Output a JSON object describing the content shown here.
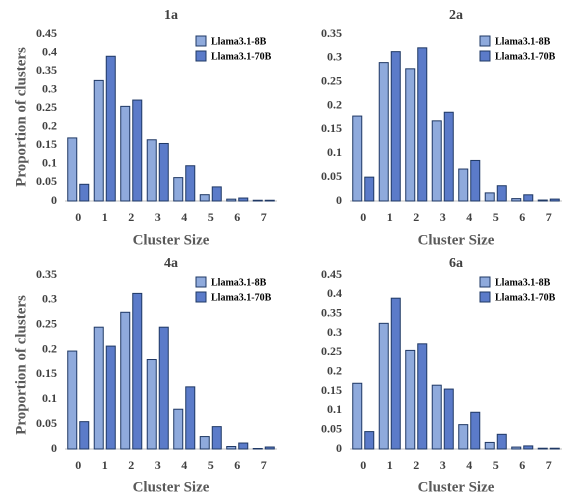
{
  "colors": {
    "s1": "#8faadc",
    "s2": "#5b7bc9",
    "stroke": "#1f3864"
  },
  "chart_data": [
    {
      "type": "bar",
      "title": "1a",
      "xlabel": "Cluster Size",
      "ylabel": "Proportion of clusters",
      "categories": [
        "0",
        "1",
        "2",
        "3",
        "4",
        "5",
        "6",
        "7"
      ],
      "ylim": [
        0,
        0.45
      ],
      "yticks": [
        "0",
        "0.05",
        "0.1",
        "0.15",
        "0.2",
        "0.25",
        "0.3",
        "0.35",
        "0.4",
        "0.45"
      ],
      "legend": "top-right",
      "series": [
        {
          "name": "Llama3.1-8B",
          "values": [
            0.17,
            0.325,
            0.255,
            0.165,
            0.063,
            0.017,
            0.005,
            0.002
          ]
        },
        {
          "name": "Llama3.1-70B",
          "values": [
            0.045,
            0.39,
            0.272,
            0.155,
            0.095,
            0.038,
            0.008,
            0.002
          ]
        }
      ]
    },
    {
      "type": "bar",
      "title": "2a",
      "xlabel": "Cluster Size",
      "ylabel": "",
      "categories": [
        "0",
        "1",
        "2",
        "3",
        "4",
        "5",
        "6",
        "7"
      ],
      "ylim": [
        0,
        0.35
      ],
      "yticks": [
        "0",
        "0.05",
        "0.1",
        "0.15",
        "0.2",
        "0.25",
        "0.3",
        "0.35"
      ],
      "legend": "top-right",
      "series": [
        {
          "name": "Llama3.1-8B",
          "values": [
            0.178,
            0.29,
            0.277,
            0.168,
            0.067,
            0.017,
            0.005,
            0.002
          ]
        },
        {
          "name": "Llama3.1-70B",
          "values": [
            0.05,
            0.313,
            0.321,
            0.186,
            0.085,
            0.032,
            0.013,
            0.004
          ]
        }
      ]
    },
    {
      "type": "bar",
      "title": "4a",
      "xlabel": "Cluster Size",
      "ylabel": "Proportion of clusters",
      "categories": [
        "0",
        "1",
        "2",
        "3",
        "4",
        "5",
        "6",
        "7"
      ],
      "ylim": [
        0,
        0.35
      ],
      "yticks": [
        "0",
        "0.05",
        "0.1",
        "0.15",
        "0.2",
        "0.25",
        "0.3",
        "0.35"
      ],
      "legend": "top-right",
      "series": [
        {
          "name": "Llama3.1-8B",
          "values": [
            0.197,
            0.245,
            0.275,
            0.18,
            0.08,
            0.025,
            0.005,
            0.001
          ]
        },
        {
          "name": "Llama3.1-70B",
          "values": [
            0.055,
            0.207,
            0.313,
            0.245,
            0.125,
            0.045,
            0.012,
            0.004
          ]
        }
      ]
    },
    {
      "type": "bar",
      "title": "6a",
      "xlabel": "Cluster Size",
      "ylabel": "",
      "categories": [
        "0",
        "1",
        "2",
        "3",
        "4",
        "5",
        "6",
        "7"
      ],
      "ylim": [
        0,
        0.45
      ],
      "yticks": [
        "0",
        "0.05",
        "0.1",
        "0.15",
        "0.2",
        "0.25",
        "0.3",
        "0.35",
        "0.4",
        "0.45"
      ],
      "legend": "top-right",
      "series": [
        {
          "name": "Llama3.1-8B",
          "values": [
            0.17,
            0.325,
            0.255,
            0.165,
            0.063,
            0.017,
            0.005,
            0.002
          ]
        },
        {
          "name": "Llama3.1-70B",
          "values": [
            0.045,
            0.39,
            0.272,
            0.155,
            0.095,
            0.038,
            0.008,
            0.002
          ]
        }
      ]
    }
  ]
}
